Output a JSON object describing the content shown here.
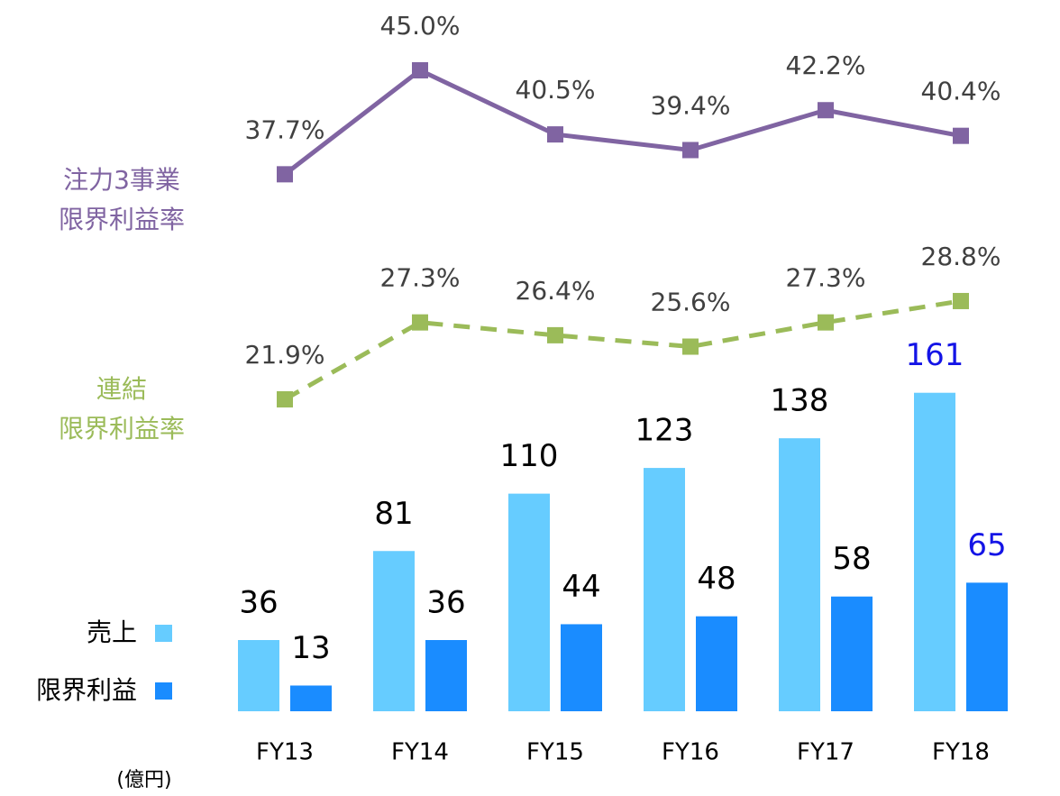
{
  "chart_data": {
    "type": "bar-line",
    "categories": [
      "FY13",
      "FY14",
      "FY15",
      "FY16",
      "FY17",
      "FY18"
    ],
    "unit": "(億円)",
    "ylim": [
      0,
      360
    ],
    "y2lim": [
      0,
      50
    ],
    "highlight_category": "FY18",
    "highlight_color": "#1414e6",
    "series": [
      {
        "name": "売上",
        "type": "bar",
        "color": "#66ccff",
        "values": [
          36,
          81,
          110,
          123,
          138,
          161
        ]
      },
      {
        "name": "限界利益",
        "type": "bar",
        "color": "#1a8cff",
        "values": [
          13,
          36,
          44,
          48,
          58,
          65
        ]
      },
      {
        "name": "注力3事業\n限界利益率",
        "type": "line",
        "axis": "y2",
        "color": "#8064a2",
        "dash": false,
        "values": [
          37.7,
          45.0,
          40.5,
          39.4,
          42.2,
          40.4
        ],
        "value_labels": [
          "37.7%",
          "45.0%",
          "40.5%",
          "39.4%",
          "42.2%",
          "40.4%"
        ]
      },
      {
        "name": "連結\n限界利益率",
        "type": "line",
        "axis": "y2",
        "color": "#9bbb59",
        "dash": true,
        "values": [
          21.9,
          27.3,
          26.4,
          25.6,
          27.3,
          28.8
        ],
        "value_labels": [
          "21.9%",
          "27.3%",
          "26.4%",
          "25.6%",
          "27.3%",
          "28.8%"
        ]
      }
    ]
  }
}
